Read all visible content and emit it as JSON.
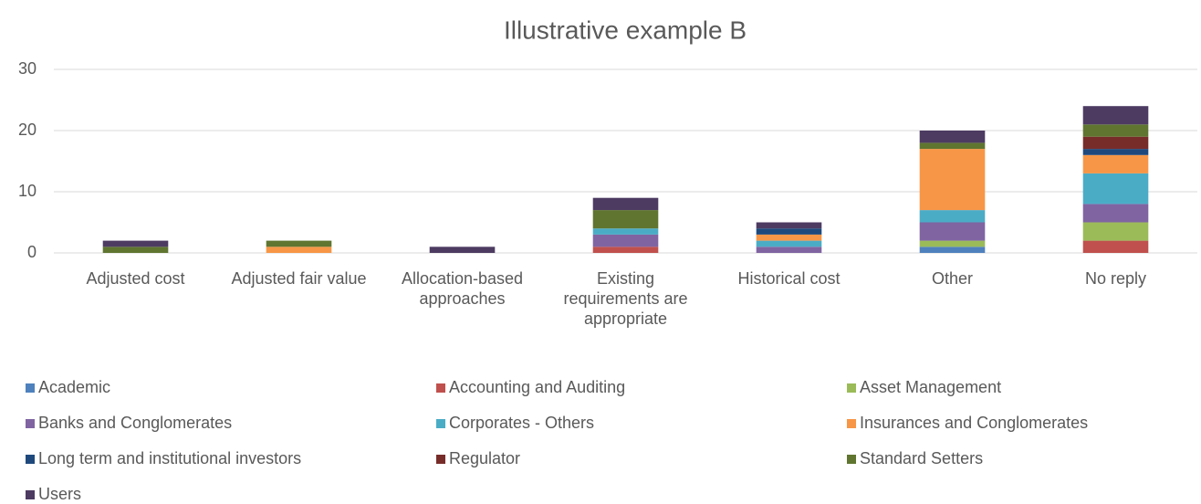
{
  "chart_data": {
    "type": "bar",
    "stacked": true,
    "title": "Illustrative example B",
    "categories": [
      "Adjusted cost",
      "Adjusted fair value",
      "Allocation-based approaches",
      "Existing requirements are appropriate",
      "Historical cost",
      "Other",
      "No reply"
    ],
    "series": [
      {
        "name": "Academic",
        "color": "#4f81bd",
        "values": [
          0,
          0,
          0,
          0,
          0,
          1,
          0
        ]
      },
      {
        "name": "Accounting and Auditing",
        "color": "#c0504d",
        "values": [
          0,
          0,
          0,
          1,
          0,
          0,
          2
        ]
      },
      {
        "name": "Asset Management",
        "color": "#9bbb59",
        "values": [
          0,
          0,
          0,
          0,
          0,
          1,
          3
        ]
      },
      {
        "name": "Banks and Conglomerates",
        "color": "#8064a2",
        "values": [
          0,
          0,
          0,
          2,
          1,
          3,
          3
        ]
      },
      {
        "name": "Corporates - Others",
        "color": "#4bacc6",
        "values": [
          0,
          0,
          0,
          1,
          1,
          2,
          5
        ]
      },
      {
        "name": "Insurances and Conglomerates",
        "color": "#f79646",
        "values": [
          0,
          1,
          0,
          0,
          1,
          10,
          3
        ]
      },
      {
        "name": "Long term and institutional investors",
        "color": "#1f497d",
        "values": [
          0,
          0,
          0,
          0,
          1,
          0,
          1
        ]
      },
      {
        "name": "Regulator",
        "color": "#772c2a",
        "values": [
          0,
          0,
          0,
          0,
          0,
          0,
          2
        ]
      },
      {
        "name": "Standard Setters",
        "color": "#5f7530",
        "values": [
          1,
          1,
          0,
          3,
          0,
          1,
          2
        ]
      },
      {
        "name": "Users",
        "color": "#4d3b62",
        "values": [
          1,
          0,
          1,
          2,
          1,
          2,
          3
        ]
      }
    ],
    "ylim": [
      0,
      30
    ],
    "yticks": [
      0,
      10,
      20,
      30
    ],
    "grid": true,
    "legend": "bottom"
  }
}
